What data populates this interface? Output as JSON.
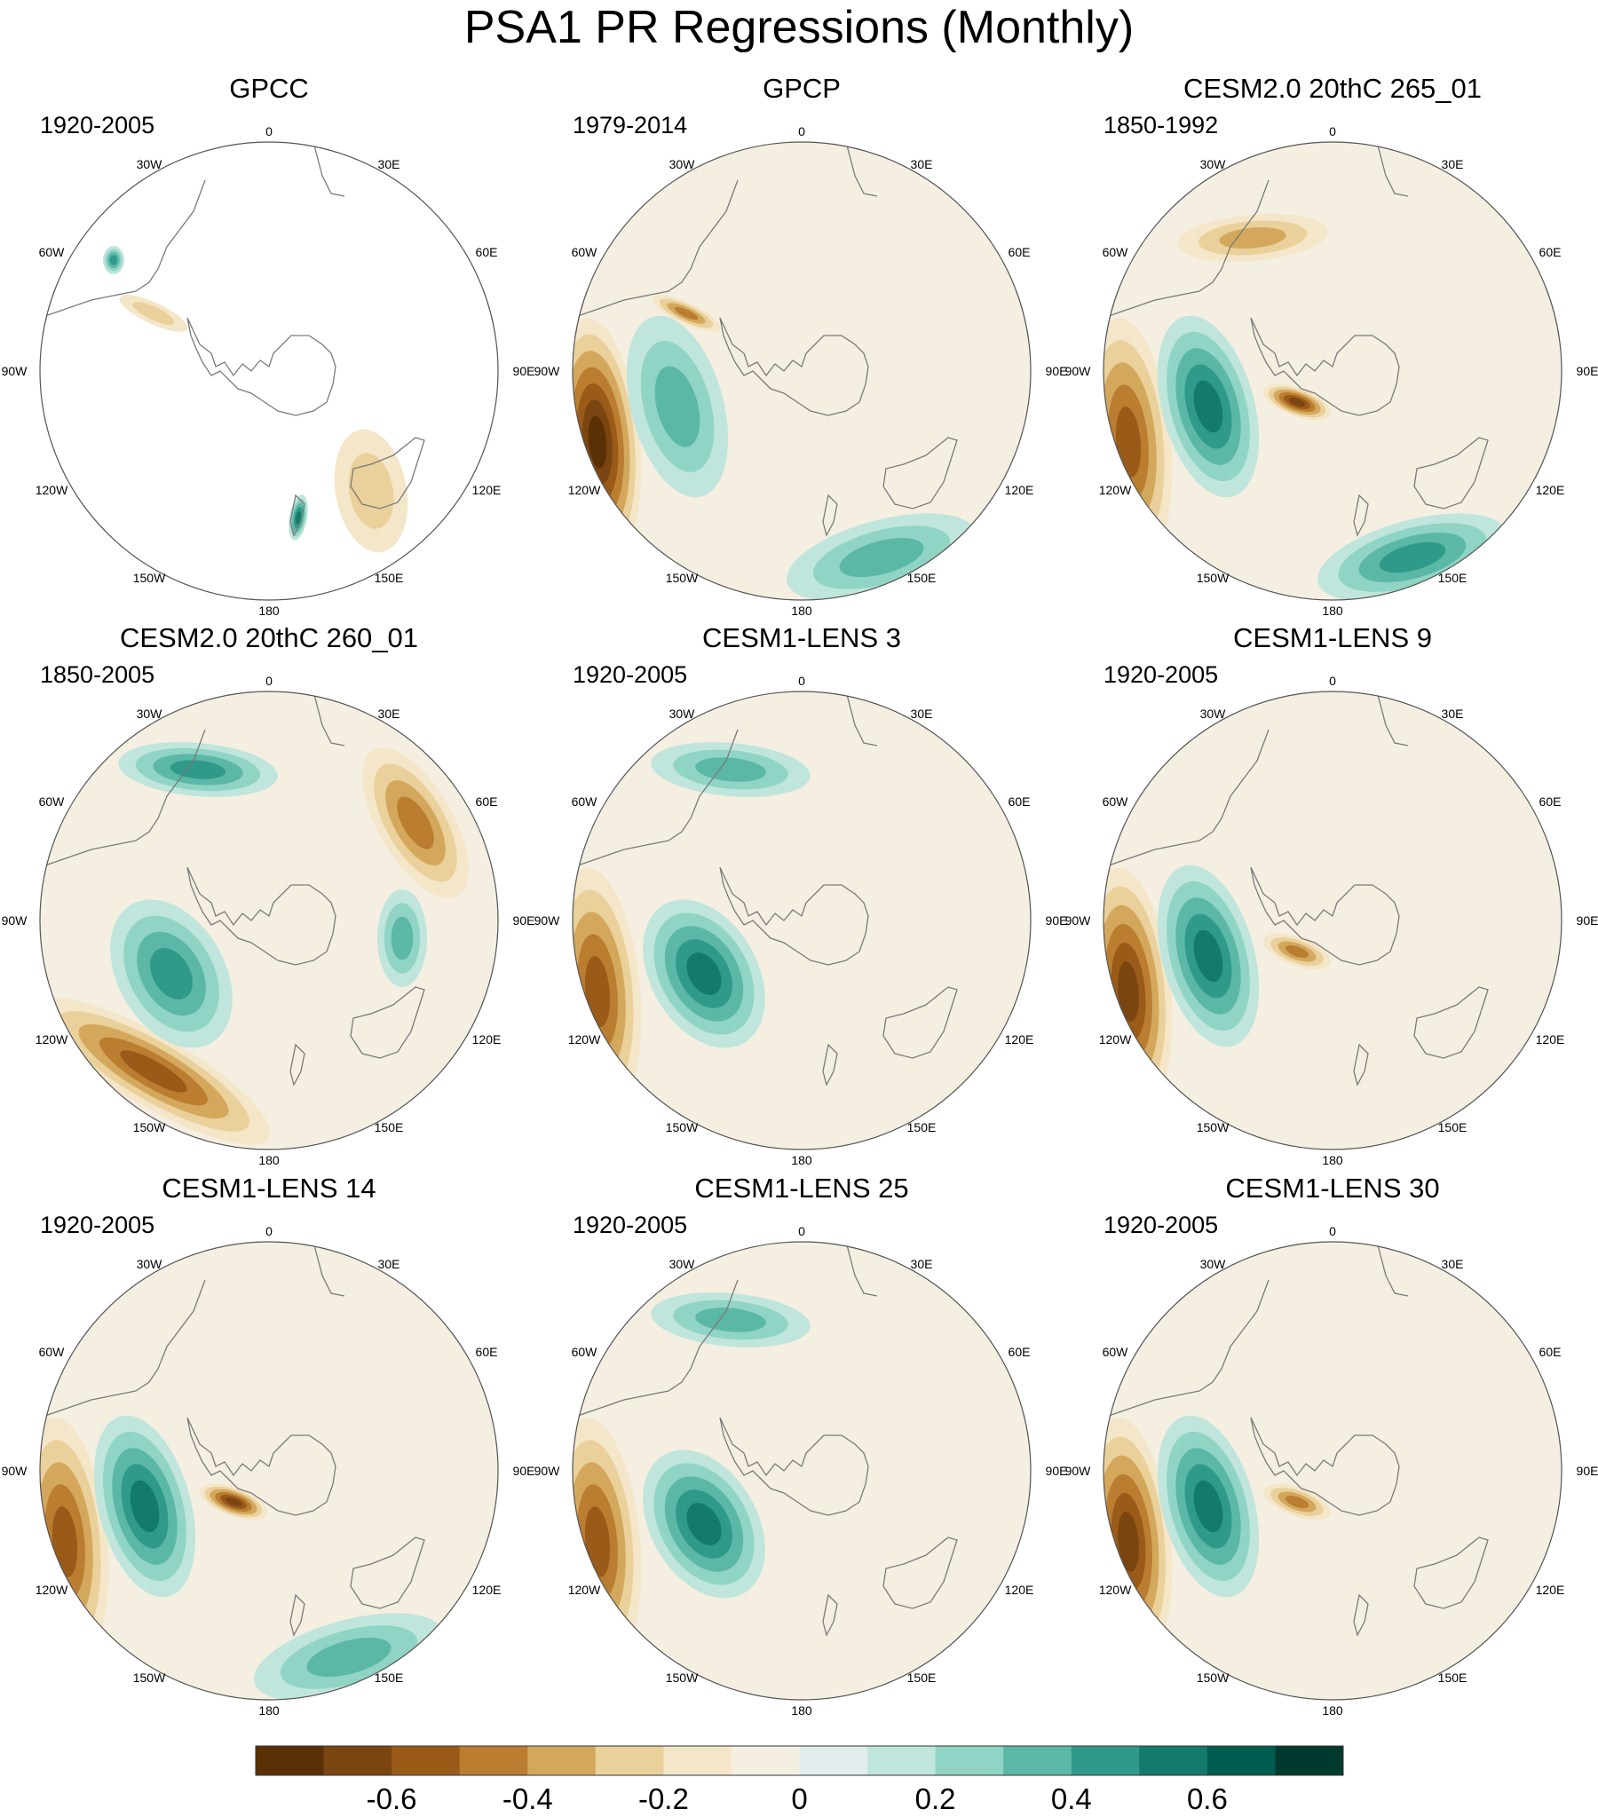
{
  "title": "PSA1 PR Regressions (Monthly)",
  "longitude_labels": [
    "0",
    "30E",
    "60E",
    "90E",
    "120E",
    "150E",
    "180",
    "150W",
    "120W",
    "90W",
    "60W",
    "30W"
  ],
  "panels": [
    {
      "name": "GPCC",
      "period": "1920-2005",
      "coverage": "land-only",
      "anomalies": [
        {
          "sign": "negative",
          "level": 2,
          "region": "southern tip of South America"
        },
        {
          "sign": "positive",
          "level": 4,
          "region": "small spot west of Antarctic Peninsula, 60W"
        },
        {
          "sign": "positive",
          "level": 5,
          "region": "New Zealand west coast"
        },
        {
          "sign": "negative",
          "level": 2,
          "region": "southern Australia"
        }
      ]
    },
    {
      "name": "GPCP",
      "period": "1979-2014",
      "coverage": "global",
      "anomalies": [
        {
          "sign": "negative",
          "level": 7,
          "region": "southeast Pacific, 110W"
        },
        {
          "sign": "positive",
          "level": 3,
          "region": "Bellingshausen Sea, 90W"
        },
        {
          "sign": "negative",
          "level": 4,
          "region": "southern tip of South America"
        },
        {
          "sign": "positive",
          "level": 3,
          "region": "south of New Zealand"
        }
      ]
    },
    {
      "name": "CESM2.0 20thC 265_01",
      "period": "1850-1992",
      "coverage": "global",
      "anomalies": [
        {
          "sign": "negative",
          "level": 5,
          "region": "southeast Pacific, 110W"
        },
        {
          "sign": "positive",
          "level": 5,
          "region": "Bellingshausen Sea, 90W"
        },
        {
          "sign": "negative",
          "level": 6,
          "region": "Amundsen Sea coast"
        },
        {
          "sign": "positive",
          "level": 4,
          "region": "south of New Zealand"
        },
        {
          "sign": "negative",
          "level": 3,
          "region": "South Atlantic, 30W"
        }
      ]
    },
    {
      "name": "CESM2.0 20thC 260_01",
      "period": "1850-2005",
      "coverage": "global",
      "anomalies": [
        {
          "sign": "negative",
          "level": 5,
          "region": "South Pacific arc, 120-150W"
        },
        {
          "sign": "positive",
          "level": 4,
          "region": "Amundsen Sea, 110W"
        },
        {
          "sign": "positive",
          "level": 4,
          "region": "South Atlantic, 15W"
        },
        {
          "sign": "negative",
          "level": 4,
          "region": "Indian Ocean, 40E"
        },
        {
          "sign": "positive",
          "level": 3,
          "region": "Indian Ocean, 80E"
        }
      ]
    },
    {
      "name": "CESM1-LENS 3",
      "period": "1920-2005",
      "coverage": "global",
      "anomalies": [
        {
          "sign": "negative",
          "level": 5,
          "region": "southeast Pacific, 110W"
        },
        {
          "sign": "positive",
          "level": 5,
          "region": "Amundsen Sea, 110W"
        },
        {
          "sign": "positive",
          "level": 3,
          "region": "South Atlantic, 15W"
        }
      ]
    },
    {
      "name": "CESM1-LENS 9",
      "period": "1920-2005",
      "coverage": "global",
      "anomalies": [
        {
          "sign": "negative",
          "level": 6,
          "region": "southeast Pacific, 110W"
        },
        {
          "sign": "positive",
          "level": 5,
          "region": "Bellingshausen Sea, 90W"
        },
        {
          "sign": "negative",
          "level": 4,
          "region": "Amundsen Sea coast"
        }
      ]
    },
    {
      "name": "CESM1-LENS 14",
      "period": "1920-2005",
      "coverage": "global",
      "anomalies": [
        {
          "sign": "negative",
          "level": 5,
          "region": "southeast Pacific, 110W"
        },
        {
          "sign": "positive",
          "level": 5,
          "region": "Bellingshausen Sea, 90W"
        },
        {
          "sign": "negative",
          "level": 6,
          "region": "Amundsen Sea coast"
        },
        {
          "sign": "positive",
          "level": 3,
          "region": "south of New Zealand"
        }
      ]
    },
    {
      "name": "CESM1-LENS 25",
      "period": "1920-2005",
      "coverage": "global",
      "anomalies": [
        {
          "sign": "negative",
          "level": 5,
          "region": "southeast Pacific, 110W"
        },
        {
          "sign": "positive",
          "level": 5,
          "region": "Amundsen Sea, 110W"
        },
        {
          "sign": "positive",
          "level": 3,
          "region": "South Atlantic, 15W"
        }
      ]
    },
    {
      "name": "CESM1-LENS 30",
      "period": "1920-2005",
      "coverage": "global",
      "anomalies": [
        {
          "sign": "negative",
          "level": 6,
          "region": "southeast Pacific, 110W"
        },
        {
          "sign": "positive",
          "level": 5,
          "region": "Bellingshausen Sea, 90W"
        },
        {
          "sign": "negative",
          "level": 4,
          "region": "Amundsen Sea coast"
        }
      ]
    }
  ],
  "colorbar": {
    "colors": [
      "#5a3005",
      "#7a4510",
      "#9a5a18",
      "#bb7d30",
      "#d4a85c",
      "#ead09a",
      "#f4e6c8",
      "#f4efe1",
      "#e1ecec",
      "#bfe5dc",
      "#90d4c5",
      "#5cb8a6",
      "#2f9a89",
      "#147a6c",
      "#005c4e",
      "#00392e"
    ],
    "labels": [
      "-0.6",
      "-0.4",
      "-0.2",
      "0",
      "0.2",
      "0.4",
      "0.6"
    ]
  },
  "land_color": "#7a7a7a"
}
